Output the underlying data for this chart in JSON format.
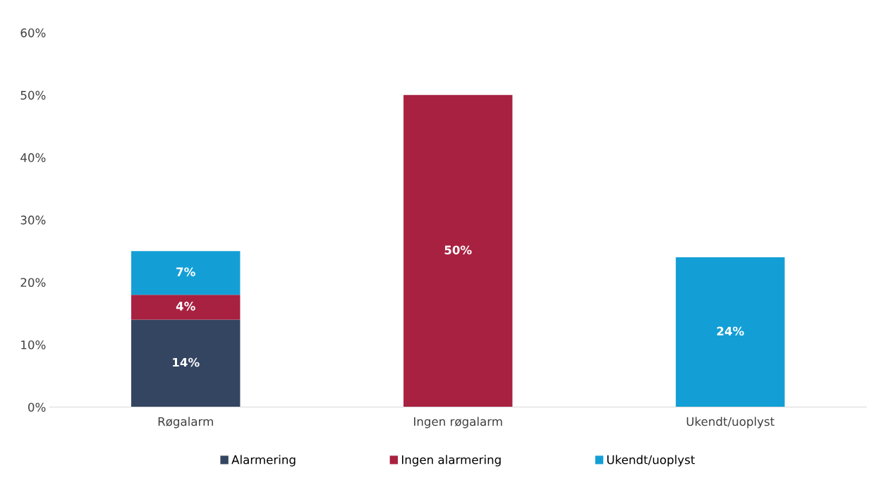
{
  "chart_data": {
    "type": "bar",
    "stacked": true,
    "categories": [
      "Røgalarm",
      "Ingen røgalarm",
      "Ukendt/uoplyst"
    ],
    "series": [
      {
        "name": "Alarmering",
        "color": "#344561",
        "values": [
          14,
          null,
          null
        ],
        "value_labels": [
          "14%",
          null,
          null
        ]
      },
      {
        "name": "Ingen alarmering",
        "color": "#a82140",
        "values": [
          4,
          50,
          null
        ],
        "value_labels": [
          "4%",
          "50%",
          null
        ]
      },
      {
        "name": "Ukendt/uoplyst",
        "color": "#139fd6",
        "values": [
          7,
          null,
          24
        ],
        "value_labels": [
          "7%",
          null,
          "24%"
        ]
      }
    ],
    "ylim": [
      0,
      60
    ],
    "yticks": [
      {
        "value": 0,
        "label": "0%"
      },
      {
        "value": 10,
        "label": "10%"
      },
      {
        "value": 20,
        "label": "20%"
      },
      {
        "value": 30,
        "label": "30%"
      },
      {
        "value": 40,
        "label": "40%"
      },
      {
        "value": 50,
        "label": "50%"
      },
      {
        "value": 60,
        "label": "60%"
      }
    ],
    "grid": false,
    "legend": "bottom"
  }
}
